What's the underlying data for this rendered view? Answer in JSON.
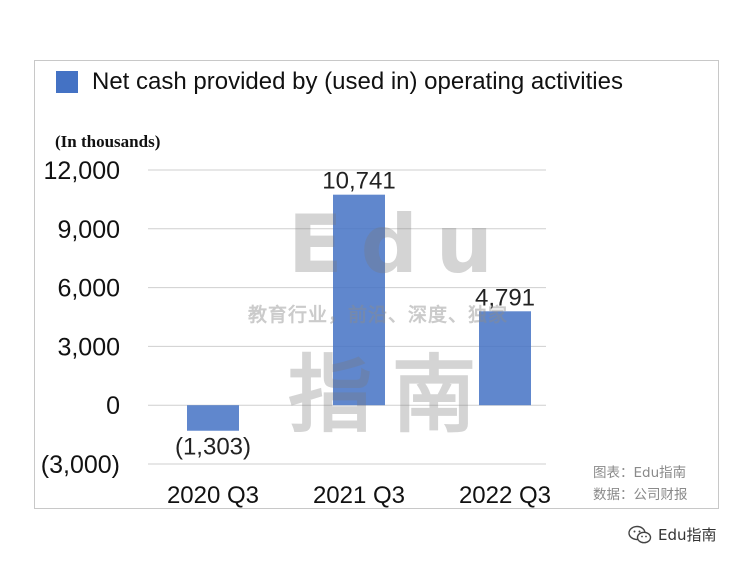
{
  "chart_data": {
    "type": "bar",
    "title": "",
    "ylabel": "(In thousands)",
    "xlabel": "",
    "categories": [
      "2020 Q3",
      "2021 Q3",
      "2022 Q3"
    ],
    "series": [
      {
        "name": "Net cash provided by (used in) operating activities",
        "values": [
          -1303,
          10741,
          4791
        ],
        "color": "#4472C4"
      }
    ],
    "data_labels": [
      "(1,303)",
      "10,741",
      "4,791"
    ],
    "ylim": [
      -3000,
      12000
    ],
    "yticks": [
      -3000,
      0,
      3000,
      6000,
      9000,
      12000
    ],
    "ytick_labels": [
      "(3,000)",
      "0",
      "3,000",
      "6,000",
      "9,000",
      "12,000"
    ],
    "grid": true,
    "legend_position": "top-left"
  },
  "legend": {
    "label": "Net cash provided by (used in) operating activities",
    "color": "#4472C4"
  },
  "unit_label": "(In thousands)",
  "watermark": {
    "big_top": "Edu",
    "slogan": "教育行业，前沿、深度、独家",
    "big_bottom": "指南"
  },
  "source": {
    "chart": "图表：Edu指南",
    "data": "数据：公司财报"
  },
  "brand": {
    "name": "Edu指南",
    "icon": "wechat-icon"
  }
}
